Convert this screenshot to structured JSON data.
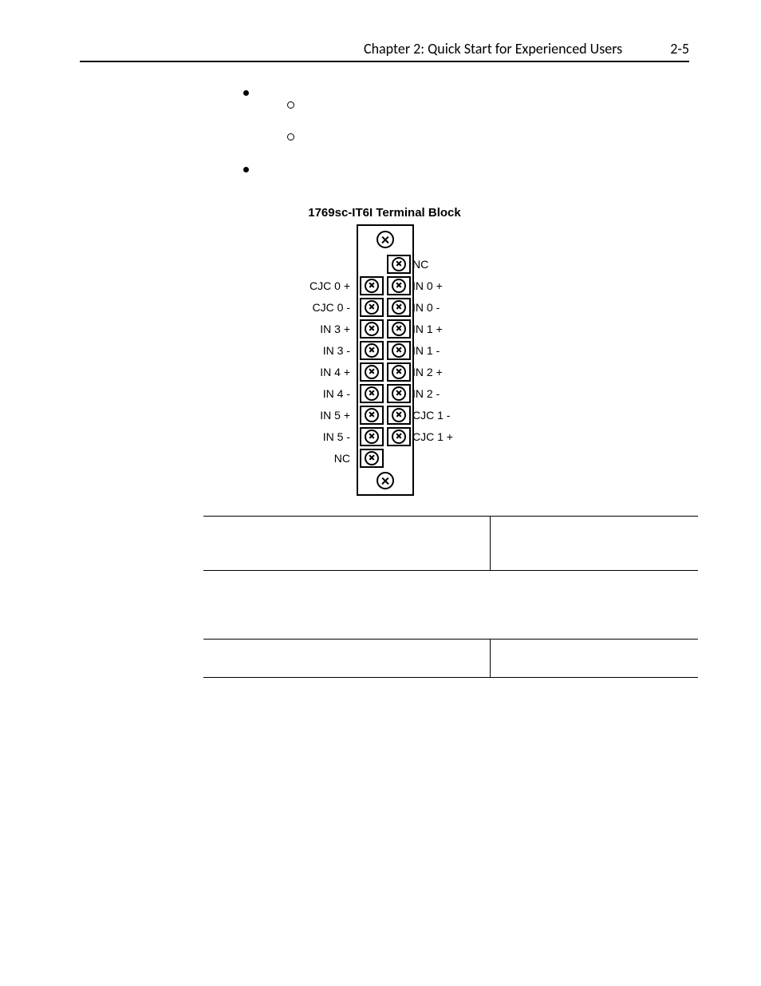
{
  "header": {
    "title": "Chapter 2:  Quick Start for Experienced Users",
    "page": "2-5"
  },
  "diagram": {
    "title": "1769sc-IT6I Terminal Block",
    "left_labels": [
      "CJC 0 +",
      "CJC 0 -",
      "IN 3 +",
      "IN 3 -",
      "IN 4 +",
      "IN 4 -",
      "IN 5 +",
      "IN 5 -",
      "NC"
    ],
    "right_labels": [
      "NC",
      "IN 0 +",
      "IN 0 -",
      "IN 1 +",
      "IN 1 -",
      "IN 2 +",
      "IN 2 -",
      "CJC 1 -",
      "CJC 1 +"
    ],
    "num_rows": 10,
    "colors": {
      "stroke": "#000000",
      "background": "#ffffff"
    }
  },
  "table1": {
    "rows": [
      [
        "",
        ""
      ]
    ]
  },
  "table2": {
    "rows": [
      [
        "",
        ""
      ]
    ]
  }
}
